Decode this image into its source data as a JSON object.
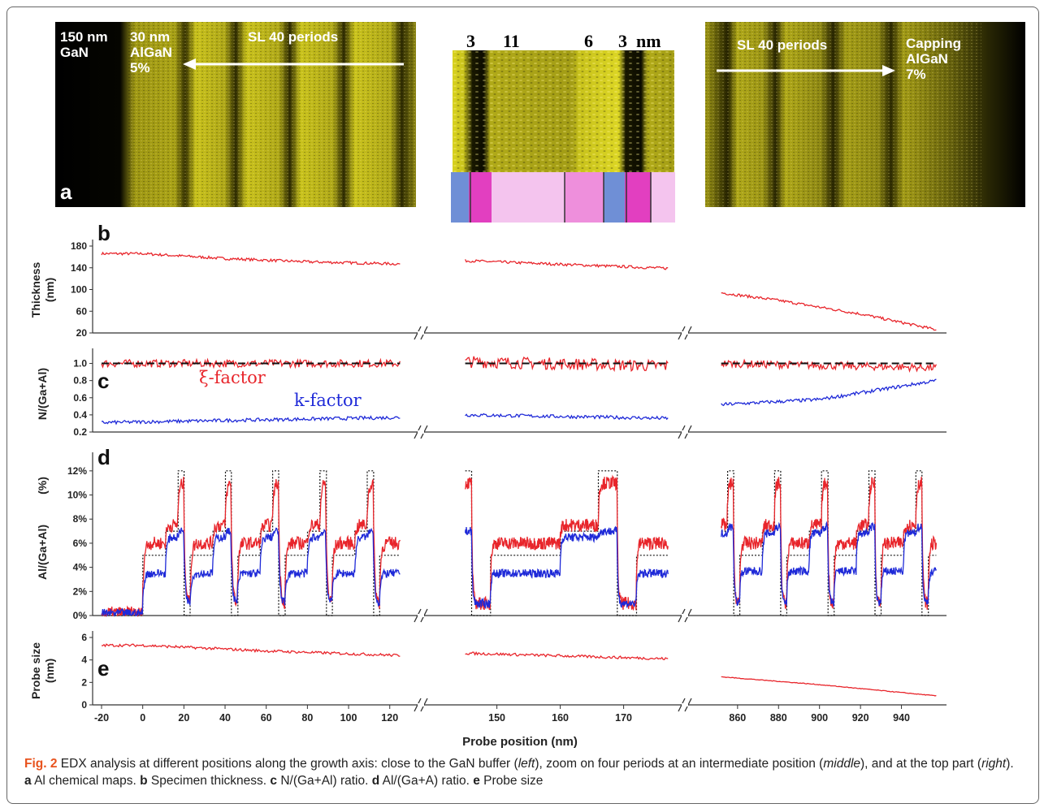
{
  "panel_a": {
    "letter": "a",
    "left_labels": {
      "gan": "150 nm\nGaN",
      "algan": "30 nm\nAlGaN\n5%",
      "sl": "SL 40 periods"
    },
    "middle_labels": {
      "t1": "3",
      "t2": "11",
      "t3": "6",
      "t4": "3",
      "unit": "nm"
    },
    "right_labels": {
      "sl": "SL 40 periods",
      "cap": "Capping\nAlGaN\n7%"
    },
    "colors": {
      "map": "#d8d21e",
      "bar_blue": "#6f8fd6",
      "bar_magenta": "#e23fc0",
      "bar_light": "#f4c4ee",
      "bar_mid": "#ee8fdc"
    }
  },
  "panel_labels": {
    "b": "b",
    "c": "c",
    "d": "d",
    "e": "e"
  },
  "y_labels": {
    "b": "Thickness\n(nm)",
    "c": "N/(Ga+Al)",
    "d_main": "Al/(Ga+Al)",
    "d_unit": "(%)",
    "e": "Probe size\n(nm)"
  },
  "annotations": {
    "xi": "ξ-factor",
    "k": "k-factor"
  },
  "x_axis_label": "Probe position (nm)",
  "colors": {
    "red": "#e8252b",
    "blue": "#1f2ad8",
    "dotted": "#222222"
  },
  "chart_data": {
    "type": "line",
    "x_segments": [
      {
        "xlim": [
          -20,
          128
        ],
        "ticks": [
          "-20",
          "0",
          "20",
          "40",
          "60",
          "80",
          "100",
          "120"
        ]
      },
      {
        "xlim": [
          143,
          178
        ],
        "ticks": [
          "150",
          "160",
          "170"
        ]
      },
      {
        "xlim": [
          845,
          960
        ],
        "ticks": [
          "860",
          "880",
          "900",
          "920",
          "940"
        ]
      }
    ],
    "panels": [
      {
        "id": "b",
        "ylabel": "Thickness (nm)",
        "ylim": [
          20,
          180
        ],
        "yticks": [
          "20",
          "60",
          "100",
          "140",
          "180"
        ],
        "series": [
          {
            "name": "",
            "color": "red",
            "segments": [
              {
                "x": [
                  -20,
                  0,
                  40,
                  80,
                  125
                ],
                "y": [
                  166,
                  166,
                  157,
                  151,
                  147
                ]
              },
              {
                "x": [
                  145,
                  177
                ],
                "y": [
                  153,
                  139
                ]
              },
              {
                "x": [
                  852,
                  880,
                  920,
                  957
                ],
                "y": [
                  94,
                  80,
                  55,
                  26
                ]
              }
            ]
          }
        ]
      },
      {
        "id": "c",
        "ylabel": "N/(Ga+Al)",
        "ylim": [
          0.2,
          1.1
        ],
        "yticks": [
          "0.2",
          "0.4",
          "0.6",
          "0.8",
          "1.0"
        ],
        "series": [
          {
            "name": "ξ-factor",
            "color": "red",
            "segments": [
              {
                "x": [
                  -20,
                  125
                ],
                "y": [
                  1.0,
                  1.0
                ]
              },
              {
                "x": [
                  145,
                  177
                ],
                "y": [
                  1.02,
                  0.97
                ]
              },
              {
                "x": [
                  852,
                  957
                ],
                "y": [
                  1.0,
                  0.95
                ]
              }
            ]
          },
          {
            "name": "k-factor",
            "color": "blue",
            "segments": [
              {
                "x": [
                  -20,
                  125
                ],
                "y": [
                  0.31,
                  0.37
                ]
              },
              {
                "x": [
                  145,
                  177
                ],
                "y": [
                  0.4,
                  0.36
                ]
              },
              {
                "x": [
                  852,
                  900,
                  957
                ],
                "y": [
                  0.52,
                  0.58,
                  0.8
                ]
              }
            ]
          },
          {
            "name": "reference 1.0",
            "color": "dotted",
            "segments": [
              {
                "x": [
                  -20,
                  125
                ],
                "y": [
                  1.0,
                  1.0
                ]
              },
              {
                "x": [
                  145,
                  177
                ],
                "y": [
                  1.0,
                  1.0
                ]
              },
              {
                "x": [
                  852,
                  957
                ],
                "y": [
                  1.0,
                  1.0
                ]
              }
            ]
          }
        ]
      },
      {
        "id": "d",
        "ylabel": "Al/(Ga+Al) (%)",
        "ylim": [
          0,
          13
        ],
        "yticks": [
          "0%",
          "2%",
          "4%",
          "6%",
          "8%",
          "10%",
          "12%"
        ],
        "nominal_profile": {
          "period_nm": 23,
          "first_layer_start": 0,
          "layers": [
            {
              "al": 12,
              "nm": 3
            },
            {
              "al": 0,
              "nm": 3
            },
            {
              "al": 5,
              "nm": 11
            },
            {
              "al": 7,
              "nm": 6
            }
          ]
        },
        "series": [
          {
            "name": "ξ-factor",
            "color": "red",
            "plateaus": {
              "al5": 6,
              "al7": 7.5,
              "al12": 11,
              "al0": 1
            }
          },
          {
            "name": "k-factor",
            "color": "blue",
            "plateaus": {
              "al5": 3.5,
              "al7": 6.5,
              "al12": 7,
              "al0": 1
            }
          }
        ]
      },
      {
        "id": "e",
        "ylabel": "Probe size (nm)",
        "ylim": [
          0,
          6
        ],
        "yticks": [
          "0",
          "2",
          "4",
          "6"
        ],
        "series": [
          {
            "name": "",
            "color": "red",
            "segments": [
              {
                "x": [
                  -20,
                  0,
                  60,
                  125
                ],
                "y": [
                  5.3,
                  5.3,
                  4.8,
                  4.4
                ]
              },
              {
                "x": [
                  145,
                  177
                ],
                "y": [
                  4.6,
                  4.1
                ]
              },
              {
                "x": [
                  852,
                  900,
                  957
                ],
                "y": [
                  2.5,
                  1.8,
                  0.8
                ]
              }
            ]
          }
        ]
      }
    ]
  },
  "caption": {
    "fig": "Fig. 2",
    "t1": " EDX analysis at different positions along the growth axis: close to the GaN buffer (",
    "left": "left",
    "t2": "), zoom on four periods at an intermediate position (",
    "middle": "middle",
    "t3": "), and at the top part (",
    "right": "right",
    "t4": "). ",
    "a": "a",
    "ta": " Al chemical maps. ",
    "b": "b",
    "tb": " Specimen thickness. ",
    "c": "c",
    "tc": " N/(Ga+Al) ratio. ",
    "d": "d",
    "td": " Al/(Ga+A) ratio. ",
    "e": "e",
    "te": " Probe size"
  }
}
